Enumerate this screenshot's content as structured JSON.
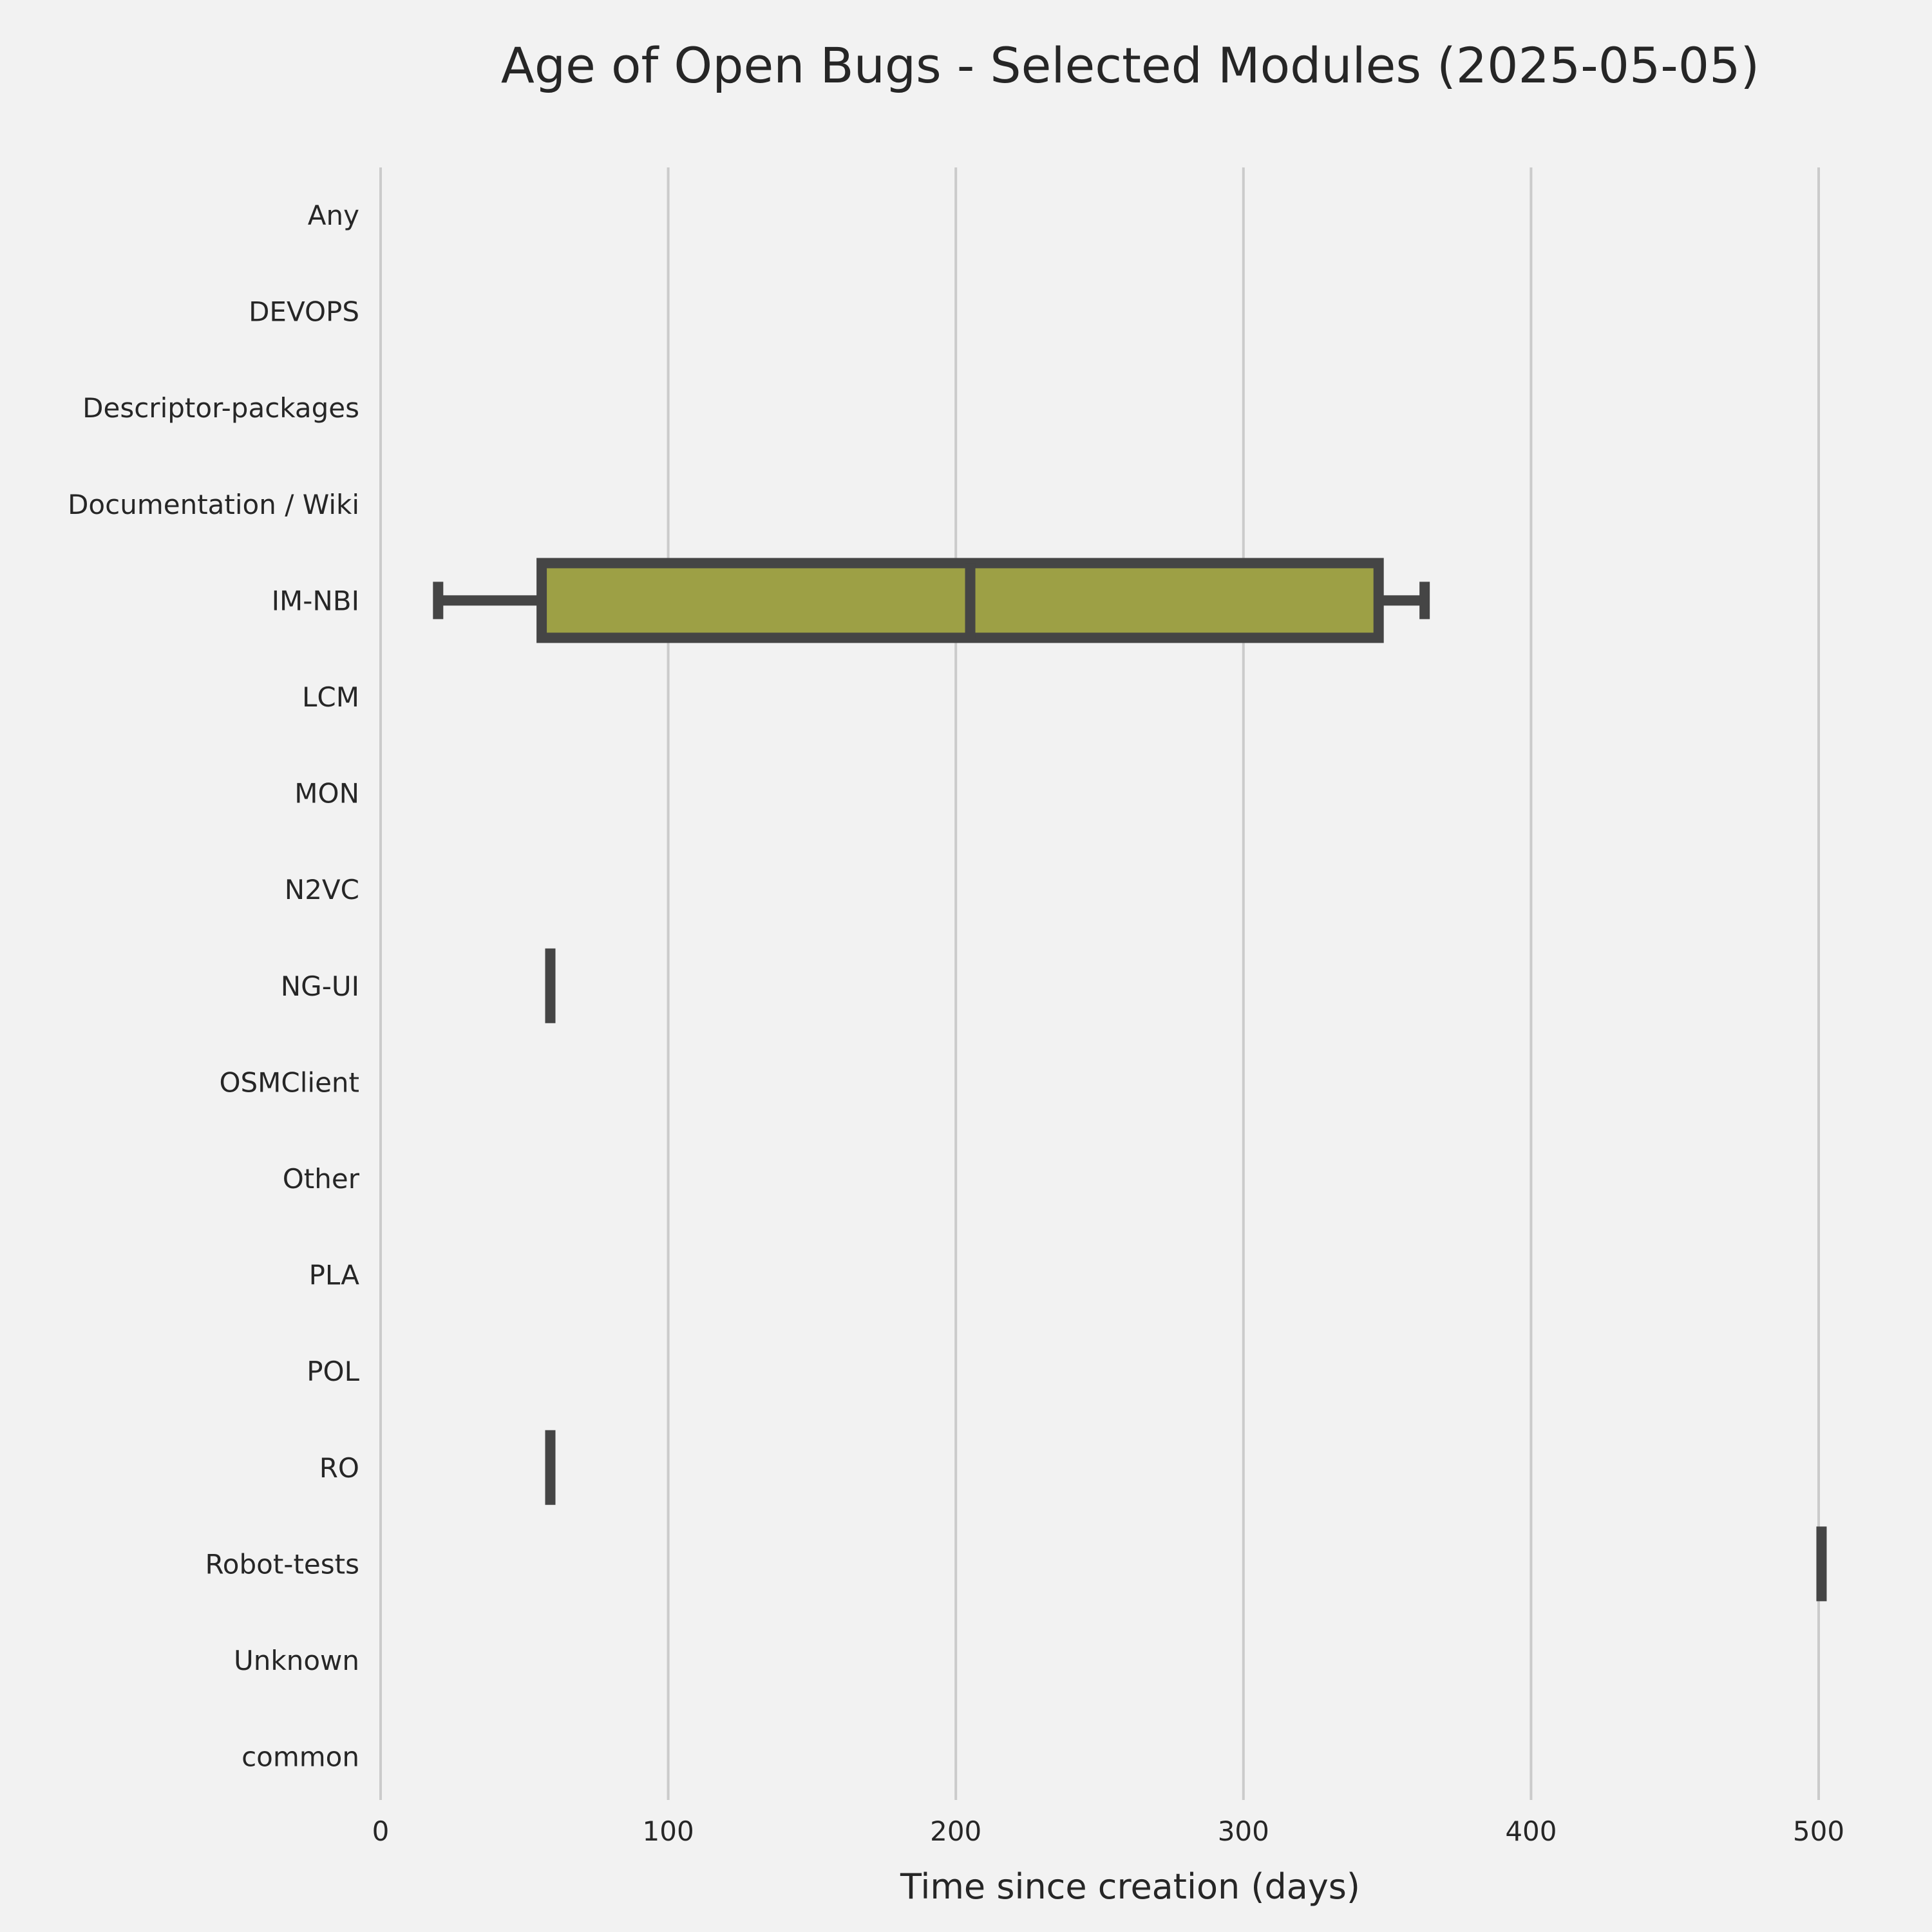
{
  "chart_data": {
    "type": "boxplot",
    "orientation": "horizontal",
    "title": "Age of Open Bugs - Selected Modules (2025-05-05)",
    "xlabel": "Time since creation (days)",
    "ylabel": "",
    "xlim": [
      0,
      500
    ],
    "xticks": [
      0,
      100,
      200,
      300,
      400,
      500
    ],
    "grid": "vertical",
    "legend": "none",
    "colors": {
      "box_fill": "#9da045",
      "edge": "#454545",
      "grid": "#cbcbcb",
      "background": "#f2f2f2",
      "text": "#262626"
    },
    "categories": [
      "Any",
      "DEVOPS",
      "Descriptor-packages",
      "Documentation / Wiki",
      "IM-NBI",
      "LCM",
      "MON",
      "N2VC",
      "NG-UI",
      "OSMClient",
      "Other",
      "PLA",
      "POL",
      "RO",
      "Robot-tests",
      "Unknown",
      "common"
    ],
    "boxes": [
      {
        "category": "IM-NBI",
        "whislo": 20,
        "q1": 56,
        "med": 205,
        "q3": 347,
        "whishi": 363
      },
      {
        "category": "NG-UI",
        "whislo": 59,
        "q1": 59,
        "med": 59,
        "q3": 59,
        "whishi": 59
      },
      {
        "category": "RO",
        "whislo": 59,
        "q1": 59,
        "med": 59,
        "q3": 59,
        "whishi": 59
      },
      {
        "category": "Robot-tests",
        "whislo": 501,
        "q1": 501,
        "med": 501,
        "q3": 501,
        "whishi": 501
      }
    ]
  }
}
